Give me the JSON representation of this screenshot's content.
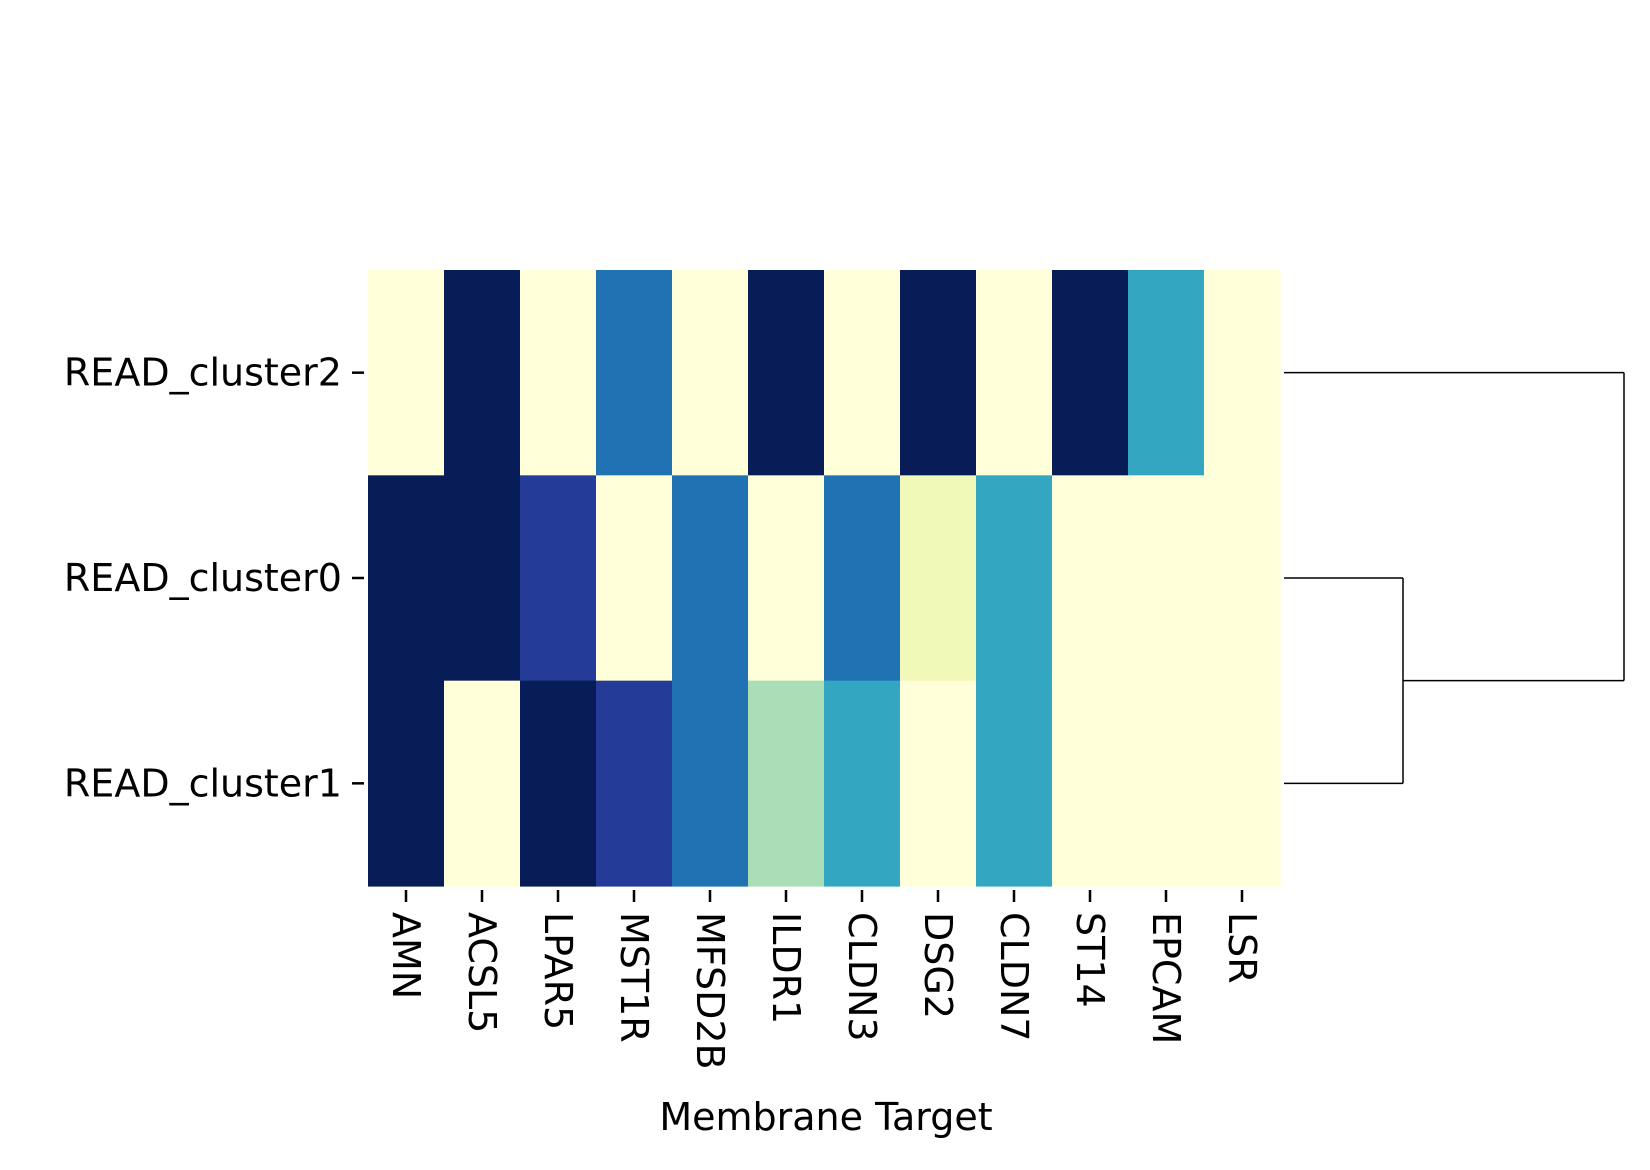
{
  "chart_data": {
    "type": "heatmap",
    "title": "",
    "xlabel": "Membrane Target",
    "ylabel": "",
    "columns": [
      "AMN",
      "ACSL5",
      "LPAR5",
      "MST1R",
      "MFSD2B",
      "ILDR1",
      "CLDN3",
      "DSG2",
      "CLDN7",
      "ST14",
      "EPCAM",
      "LSR"
    ],
    "rows": [
      "READ_cluster2",
      "READ_cluster0",
      "READ_cluster1"
    ],
    "values": [
      [
        0.0,
        1.0,
        0.0,
        0.7,
        0.0,
        1.0,
        0.0,
        1.0,
        0.0,
        1.0,
        0.55,
        0.0
      ],
      [
        1.0,
        1.0,
        0.85,
        0.0,
        0.7,
        0.0,
        0.7,
        0.1,
        0.55,
        0.0,
        0.0,
        0.0
      ],
      [
        1.0,
        0.0,
        1.0,
        0.85,
        0.7,
        0.3,
        0.55,
        0.0,
        0.55,
        0.0,
        0.0,
        0.0
      ]
    ],
    "value_range": [
      0,
      1
    ],
    "colormap": "YlGnBu",
    "colorbar": false,
    "dendrogram": {
      "side": "right",
      "merges": [
        {
          "members": [
            "READ_cluster0",
            "READ_cluster1"
          ],
          "height": 0.35
        },
        {
          "members": [
            "READ_cluster2",
            "READ_cluster0+READ_cluster1"
          ],
          "height": 1.0
        }
      ]
    }
  }
}
